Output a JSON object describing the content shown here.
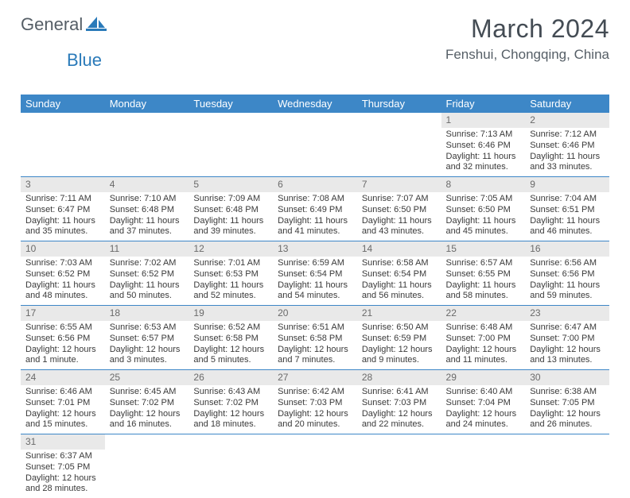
{
  "logo": {
    "part1": "General",
    "part2": "Blue"
  },
  "title": "March 2024",
  "location": "Fenshui, Chongqing, China",
  "colors": {
    "header_bg": "#3d87c7",
    "header_fg": "#ffffff",
    "daynum_bg": "#e9e9e9",
    "daynum_fg": "#6a6a6a",
    "text": "#3a3a3a",
    "rule": "#3d87c7",
    "logo_gray": "#555e66",
    "logo_blue": "#2a7ab9"
  },
  "weekdays": [
    "Sunday",
    "Monday",
    "Tuesday",
    "Wednesday",
    "Thursday",
    "Friday",
    "Saturday"
  ],
  "weeks": [
    [
      null,
      null,
      null,
      null,
      null,
      {
        "n": "1",
        "sr": "7:13 AM",
        "ss": "6:46 PM",
        "dl": "11 hours and 32 minutes."
      },
      {
        "n": "2",
        "sr": "7:12 AM",
        "ss": "6:46 PM",
        "dl": "11 hours and 33 minutes."
      }
    ],
    [
      {
        "n": "3",
        "sr": "7:11 AM",
        "ss": "6:47 PM",
        "dl": "11 hours and 35 minutes."
      },
      {
        "n": "4",
        "sr": "7:10 AM",
        "ss": "6:48 PM",
        "dl": "11 hours and 37 minutes."
      },
      {
        "n": "5",
        "sr": "7:09 AM",
        "ss": "6:48 PM",
        "dl": "11 hours and 39 minutes."
      },
      {
        "n": "6",
        "sr": "7:08 AM",
        "ss": "6:49 PM",
        "dl": "11 hours and 41 minutes."
      },
      {
        "n": "7",
        "sr": "7:07 AM",
        "ss": "6:50 PM",
        "dl": "11 hours and 43 minutes."
      },
      {
        "n": "8",
        "sr": "7:05 AM",
        "ss": "6:50 PM",
        "dl": "11 hours and 45 minutes."
      },
      {
        "n": "9",
        "sr": "7:04 AM",
        "ss": "6:51 PM",
        "dl": "11 hours and 46 minutes."
      }
    ],
    [
      {
        "n": "10",
        "sr": "7:03 AM",
        "ss": "6:52 PM",
        "dl": "11 hours and 48 minutes."
      },
      {
        "n": "11",
        "sr": "7:02 AM",
        "ss": "6:52 PM",
        "dl": "11 hours and 50 minutes."
      },
      {
        "n": "12",
        "sr": "7:01 AM",
        "ss": "6:53 PM",
        "dl": "11 hours and 52 minutes."
      },
      {
        "n": "13",
        "sr": "6:59 AM",
        "ss": "6:54 PM",
        "dl": "11 hours and 54 minutes."
      },
      {
        "n": "14",
        "sr": "6:58 AM",
        "ss": "6:54 PM",
        "dl": "11 hours and 56 minutes."
      },
      {
        "n": "15",
        "sr": "6:57 AM",
        "ss": "6:55 PM",
        "dl": "11 hours and 58 minutes."
      },
      {
        "n": "16",
        "sr": "6:56 AM",
        "ss": "6:56 PM",
        "dl": "11 hours and 59 minutes."
      }
    ],
    [
      {
        "n": "17",
        "sr": "6:55 AM",
        "ss": "6:56 PM",
        "dl": "12 hours and 1 minute."
      },
      {
        "n": "18",
        "sr": "6:53 AM",
        "ss": "6:57 PM",
        "dl": "12 hours and 3 minutes."
      },
      {
        "n": "19",
        "sr": "6:52 AM",
        "ss": "6:58 PM",
        "dl": "12 hours and 5 minutes."
      },
      {
        "n": "20",
        "sr": "6:51 AM",
        "ss": "6:58 PM",
        "dl": "12 hours and 7 minutes."
      },
      {
        "n": "21",
        "sr": "6:50 AM",
        "ss": "6:59 PM",
        "dl": "12 hours and 9 minutes."
      },
      {
        "n": "22",
        "sr": "6:48 AM",
        "ss": "7:00 PM",
        "dl": "12 hours and 11 minutes."
      },
      {
        "n": "23",
        "sr": "6:47 AM",
        "ss": "7:00 PM",
        "dl": "12 hours and 13 minutes."
      }
    ],
    [
      {
        "n": "24",
        "sr": "6:46 AM",
        "ss": "7:01 PM",
        "dl": "12 hours and 15 minutes."
      },
      {
        "n": "25",
        "sr": "6:45 AM",
        "ss": "7:02 PM",
        "dl": "12 hours and 16 minutes."
      },
      {
        "n": "26",
        "sr": "6:43 AM",
        "ss": "7:02 PM",
        "dl": "12 hours and 18 minutes."
      },
      {
        "n": "27",
        "sr": "6:42 AM",
        "ss": "7:03 PM",
        "dl": "12 hours and 20 minutes."
      },
      {
        "n": "28",
        "sr": "6:41 AM",
        "ss": "7:03 PM",
        "dl": "12 hours and 22 minutes."
      },
      {
        "n": "29",
        "sr": "6:40 AM",
        "ss": "7:04 PM",
        "dl": "12 hours and 24 minutes."
      },
      {
        "n": "30",
        "sr": "6:38 AM",
        "ss": "7:05 PM",
        "dl": "12 hours and 26 minutes."
      }
    ],
    [
      {
        "n": "31",
        "sr": "6:37 AM",
        "ss": "7:05 PM",
        "dl": "12 hours and 28 minutes."
      },
      null,
      null,
      null,
      null,
      null,
      null
    ]
  ]
}
